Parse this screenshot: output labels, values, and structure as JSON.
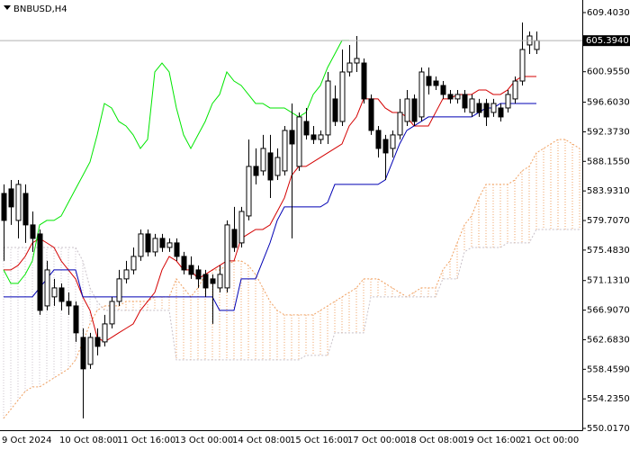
{
  "chart_data": {
    "type": "candlestick",
    "title": "BNBUSD,H4",
    "categories": [
      "9 Oct 2024",
      null,
      null,
      null,
      null,
      null,
      null,
      null,
      "10 Oct 08:00",
      null,
      null,
      null,
      null,
      null,
      null,
      null,
      "11 Oct 16:00",
      null,
      null,
      null,
      null,
      null,
      null,
      null,
      "13 Oct 00:00",
      null,
      null,
      null,
      null,
      null,
      null,
      null,
      "14 Oct 08:00",
      null,
      null,
      null,
      null,
      null,
      null,
      null,
      "15 Oct 16:00",
      null,
      null,
      null,
      null,
      null,
      null,
      null,
      "17 Oct 00:00",
      null,
      null,
      null,
      null,
      null,
      null,
      null,
      "18 Oct 08:00",
      null,
      null,
      null,
      null,
      null,
      null,
      null,
      "19 Oct 16:00",
      null,
      null,
      null,
      null,
      null,
      null,
      null,
      "21 Oct 00:00",
      null,
      null,
      null,
      null,
      null,
      null,
      null,
      null
    ],
    "open": [
      583.57,
      584.22,
      579.72,
      583.57,
      579.08,
      577.79,
      567.51,
      568.8,
      570.08,
      568.15,
      567.51,
      563.01,
      559.16,
      563.01,
      562.37,
      564.94,
      568.15,
      571.37,
      572.65,
      574.58,
      577.79,
      575.22,
      577.15,
      575.86,
      576.51,
      574.58,
      573.29,
      572.65,
      572.01,
      571.37,
      570.08,
      570.08,
      578.43,
      576.51,
      580.36,
      587.43,
      586.79,
      589.36,
      586.14,
      586.79,
      592.57,
      587.43,
      593.85,
      591.93,
      591.28,
      591.93,
      597.07,
      593.85,
      600.92,
      602.2,
      602.2,
      597.07,
      592.57,
      591.28,
      590.0,
      591.93,
      593.85,
      597.07,
      594.5,
      600.28,
      599.63,
      598.99,
      597.71,
      597.07,
      597.71,
      595.14,
      596.42,
      596.42,
      595.14,
      595.78,
      595.78,
      597.07,
      599.63,
      604.78,
      604.13,
      null,
      null,
      null,
      null,
      null,
      null
    ],
    "high": [
      584.86,
      585.5,
      585.5,
      584.86,
      581.0,
      578.43,
      573.94,
      571.37,
      570.72,
      569.44,
      568.15,
      564.3,
      563.66,
      564.3,
      566.23,
      568.8,
      572.65,
      573.94,
      575.86,
      578.43,
      578.43,
      577.79,
      577.79,
      577.15,
      577.15,
      575.22,
      574.58,
      573.29,
      572.65,
      572.01,
      573.29,
      579.72,
      581.65,
      581.65,
      591.28,
      590.0,
      591.93,
      591.93,
      590.0,
      593.21,
      596.42,
      595.14,
      595.78,
      593.21,
      592.57,
      600.92,
      598.99,
      604.13,
      604.78,
      606.06,
      602.85,
      597.71,
      593.21,
      591.93,
      592.57,
      597.07,
      598.35,
      597.71,
      601.56,
      601.56,
      600.28,
      599.63,
      598.35,
      598.35,
      598.35,
      597.71,
      597.07,
      597.07,
      597.07,
      596.42,
      598.35,
      600.28,
      607.99,
      606.7,
      606.7,
      null,
      null,
      null,
      null,
      null,
      null
    ],
    "low": [
      573.94,
      579.08,
      577.15,
      576.51,
      575.22,
      566.23,
      566.87,
      567.51,
      566.87,
      566.23,
      562.37,
      551.45,
      558.52,
      560.44,
      561.73,
      564.3,
      567.51,
      570.72,
      572.01,
      573.94,
      574.58,
      574.58,
      575.22,
      575.22,
      573.94,
      572.01,
      571.37,
      570.08,
      568.8,
      564.94,
      569.44,
      569.44,
      575.22,
      575.86,
      579.72,
      584.86,
      586.14,
      582.93,
      585.5,
      586.14,
      577.15,
      586.79,
      591.28,
      590.64,
      590.64,
      590.64,
      593.21,
      593.21,
      600.28,
      600.92,
      596.42,
      591.93,
      588.71,
      585.5,
      588.71,
      591.28,
      593.21,
      593.21,
      593.85,
      597.71,
      598.35,
      597.07,
      596.42,
      596.42,
      595.14,
      594.5,
      594.5,
      593.21,
      594.5,
      593.85,
      595.14,
      596.42,
      598.99,
      603.49,
      603.49,
      null,
      null,
      null,
      null,
      null,
      null
    ],
    "close": [
      579.72,
      581.65,
      584.86,
      579.08,
      577.15,
      566.87,
      572.65,
      570.08,
      568.15,
      567.51,
      563.66,
      558.52,
      563.01,
      561.73,
      564.94,
      568.15,
      571.37,
      572.65,
      574.58,
      577.79,
      575.22,
      577.15,
      575.86,
      576.51,
      574.58,
      572.65,
      572.01,
      571.37,
      570.08,
      570.72,
      572.01,
      579.08,
      575.86,
      581.0,
      587.43,
      586.14,
      590.0,
      585.5,
      588.71,
      592.57,
      590.64,
      594.5,
      591.93,
      591.28,
      591.93,
      599.63,
      593.85,
      600.92,
      602.2,
      602.85,
      597.07,
      592.57,
      590.0,
      589.36,
      591.93,
      595.14,
      597.07,
      593.85,
      600.92,
      598.99,
      598.99,
      597.71,
      597.07,
      597.71,
      595.78,
      597.07,
      595.14,
      594.5,
      596.42,
      594.5,
      597.71,
      599.63,
      604.13,
      606.06,
      605.394,
      null,
      null,
      null,
      null,
      null,
      null
    ],
    "up_color": "#ffffff",
    "down_color": "#000000",
    "series": [
      {
        "color": "#d40000",
        "values": [
          572.65,
          572.65,
          573.29,
          574.58,
          576.51,
          577.15,
          576.51,
          575.86,
          573.94,
          572.65,
          571.37,
          568.8,
          566.87,
          563.01,
          562.37,
          563.01,
          563.66,
          564.3,
          564.94,
          566.87,
          568.15,
          569.44,
          572.65,
          574.58,
          573.94,
          572.65,
          572.65,
          571.37,
          572.01,
          572.65,
          573.29,
          573.94,
          573.94,
          577.15,
          577.79,
          578.43,
          578.43,
          579.08,
          581.0,
          582.93,
          586.14,
          587.43,
          587.43,
          588.07,
          588.71,
          589.36,
          590.0,
          590.64,
          593.21,
          594.5,
          597.07,
          597.07,
          597.07,
          595.78,
          595.14,
          595.14,
          594.5,
          593.21,
          593.21,
          593.21,
          595.14,
          597.07,
          597.07,
          597.71,
          597.71,
          597.71,
          598.35,
          598.35,
          597.71,
          597.71,
          598.35,
          599.63,
          600.28,
          600.28,
          600.28,
          null,
          null,
          null,
          null,
          null,
          null
        ]
      },
      {
        "color": "#0000b4",
        "values": [
          568.8,
          568.8,
          568.8,
          568.8,
          568.8,
          570.08,
          571.37,
          572.65,
          572.65,
          572.65,
          572.65,
          568.8,
          568.8,
          568.8,
          568.8,
          568.8,
          568.8,
          568.8,
          568.8,
          568.8,
          568.8,
          568.8,
          568.8,
          568.8,
          568.8,
          568.8,
          568.8,
          568.8,
          568.8,
          568.8,
          566.87,
          566.87,
          566.87,
          571.37,
          571.37,
          571.37,
          573.94,
          576.51,
          579.72,
          581.65,
          581.65,
          581.65,
          581.65,
          581.65,
          581.65,
          582.29,
          584.86,
          584.86,
          584.86,
          584.86,
          584.86,
          584.86,
          584.86,
          585.5,
          588.07,
          590.64,
          592.57,
          593.21,
          593.85,
          594.5,
          594.5,
          594.5,
          594.5,
          594.5,
          594.5,
          594.5,
          595.14,
          595.78,
          595.78,
          596.42,
          596.42,
          596.42,
          596.42,
          596.42,
          596.42,
          null,
          null,
          null,
          null,
          null,
          null
        ]
      },
      {
        "color": "#00e600",
        "values": [
          572.65,
          570.72,
          570.72,
          572.01,
          573.94,
          579.08,
          579.72,
          579.72,
          580.36,
          582.29,
          584.22,
          586.14,
          588.07,
          591.93,
          596.42,
          595.78,
          593.85,
          593.21,
          591.93,
          590.0,
          591.28,
          600.92,
          602.2,
          600.92,
          595.78,
          591.93,
          590.0,
          591.93,
          593.85,
          596.42,
          597.71,
          600.92,
          599.63,
          598.99,
          597.71,
          596.42,
          596.42,
          595.78,
          595.78,
          595.78,
          595.14,
          594.5,
          595.14,
          597.71,
          598.99,
          601.56,
          603.49,
          605.42,
          605.42,
          null,
          null,
          null,
          null,
          null,
          null,
          null,
          null,
          null,
          null,
          null,
          null,
          null,
          null,
          null,
          null,
          null,
          null,
          null,
          null,
          null,
          null,
          null,
          null,
          null,
          null,
          null,
          null,
          null,
          null,
          null,
          null
        ]
      }
    ],
    "cloud": [
      {
        "color": "#f0a060",
        "values": [
          551.45,
          552.73,
          554.02,
          555.3,
          555.94,
          555.94,
          556.58,
          557.23,
          557.87,
          558.52,
          559.8,
          562.37,
          564.94,
          566.87,
          567.51,
          567.51,
          567.51,
          568.15,
          568.15,
          568.15,
          568.15,
          568.8,
          568.8,
          568.8,
          571.37,
          570.08,
          568.8,
          570.08,
          572.01,
          572.65,
          572.65,
          573.29,
          573.94,
          573.94,
          573.29,
          572.01,
          570.08,
          568.15,
          566.87,
          566.23,
          566.23,
          566.23,
          566.23,
          566.23,
          566.87,
          567.51,
          568.15,
          568.8,
          569.44,
          570.08,
          571.37,
          571.37,
          571.37,
          570.72,
          570.08,
          569.44,
          568.8,
          569.44,
          570.08,
          570.08,
          570.08,
          572.65,
          573.94,
          576.51,
          579.08,
          580.36,
          582.93,
          584.86,
          584.86,
          584.86,
          584.86,
          585.5,
          586.79,
          587.43,
          589.36,
          590.0,
          590.64,
          591.28,
          591.28,
          590.64,
          590.0
        ]
      },
      {
        "color": "#c8c0c8",
        "values": [
          575.86,
          575.86,
          575.86,
          575.86,
          575.86,
          575.86,
          575.86,
          575.86,
          575.86,
          575.86,
          575.86,
          573.94,
          570.08,
          568.15,
          566.87,
          566.87,
          566.87,
          566.87,
          566.87,
          566.87,
          566.87,
          566.87,
          566.87,
          566.87,
          559.8,
          559.8,
          559.8,
          559.8,
          559.8,
          559.8,
          559.8,
          559.8,
          559.8,
          559.8,
          559.8,
          559.8,
          559.8,
          559.8,
          559.8,
          559.8,
          559.8,
          559.8,
          560.44,
          560.44,
          560.44,
          560.44,
          563.66,
          563.66,
          563.66,
          563.66,
          563.66,
          568.8,
          568.8,
          568.8,
          568.8,
          568.8,
          568.8,
          568.8,
          568.8,
          568.8,
          568.8,
          571.37,
          571.37,
          571.37,
          575.22,
          575.86,
          575.86,
          575.86,
          575.86,
          575.86,
          576.51,
          576.51,
          576.51,
          576.51,
          578.43,
          578.43,
          578.43,
          578.43,
          578.43,
          578.43,
          578.43
        ]
      }
    ],
    "current_price": {
      "value": 605.394,
      "label": "605.3940"
    },
    "ylim": [
      549.76,
      611.2
    ],
    "yticks": [
      {
        "value": 609.403,
        "label": "609.4030"
      },
      {
        "value": 600.955,
        "label": "600.9550"
      },
      {
        "value": 596.603,
        "label": "596.6030"
      },
      {
        "value": 592.373,
        "label": "592.3730"
      },
      {
        "value": 588.155,
        "label": "588.1550"
      },
      {
        "value": 583.931,
        "label": "583.9310"
      },
      {
        "value": 579.707,
        "label": "579.7070"
      },
      {
        "value": 575.483,
        "label": "575.4830"
      },
      {
        "value": 571.131,
        "label": "571.1310"
      },
      {
        "value": 566.907,
        "label": "566.9070"
      },
      {
        "value": 562.683,
        "label": "562.6830"
      },
      {
        "value": 558.459,
        "label": "558.4590"
      },
      {
        "value": 554.235,
        "label": "554.2350"
      },
      {
        "value": 550.017,
        "label": "550.0170"
      }
    ],
    "grid": false
  }
}
